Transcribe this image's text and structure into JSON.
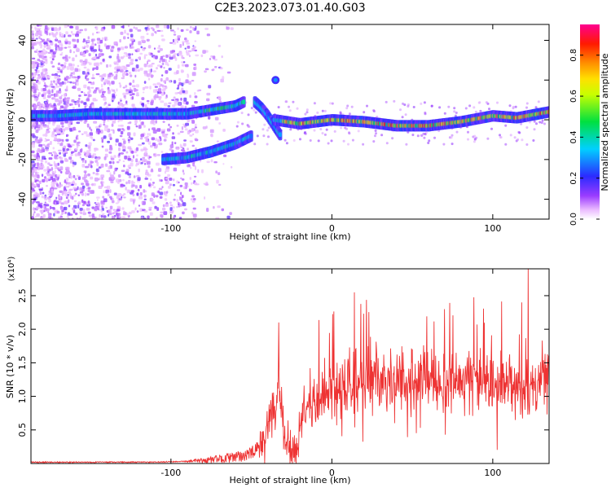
{
  "title": "C2E3.2023.073.01.40.G03",
  "chart_data": [
    {
      "type": "heatmap",
      "xlabel": "Height of straight line (km)",
      "ylabel": "Frequency (Hz)",
      "xlim": [
        -187,
        135
      ],
      "ylim": [
        -50,
        48
      ],
      "x_ticks": [
        -100,
        0,
        100
      ],
      "y_ticks": [
        -40,
        -20,
        0,
        20,
        40
      ],
      "colorbar": {
        "label": "Normalized spectral amplitude",
        "range": [
          0,
          0.95
        ],
        "ticks": [
          0.0,
          0.2,
          0.4,
          0.6,
          0.8
        ]
      },
      "ridges": [
        {
          "x": [
            -187,
            -170,
            -150,
            -130,
            -110,
            -90,
            -75,
            -60,
            -55
          ],
          "y": [
            2,
            2,
            3,
            3,
            3,
            3,
            5,
            7,
            9
          ]
        },
        {
          "x": [
            -105,
            -90,
            -75,
            -60,
            -50
          ],
          "y": [
            -20,
            -19,
            -16,
            -12,
            -8
          ]
        },
        {
          "x": [
            -48,
            -44,
            -40,
            -36,
            -32
          ],
          "y": [
            9,
            6,
            2,
            -3,
            -8
          ]
        },
        {
          "x": [
            -36,
            -20,
            0,
            20,
            40,
            60,
            80,
            100,
            115,
            135
          ],
          "y": [
            0,
            -2,
            0,
            -1,
            -3,
            -3,
            -1,
            2,
            1,
            4
          ]
        }
      ],
      "blobs": [
        {
          "x": -35,
          "y": 20
        }
      ]
    },
    {
      "type": "line",
      "xlabel": "Height of straight line (km)",
      "ylabel": "SNR (10 * v/v)",
      "y_multiplier": "(x10⁴)",
      "xlim": [
        -187,
        135
      ],
      "ylim": [
        0,
        2.9
      ],
      "x_ticks": [
        -100,
        0,
        100
      ],
      "y_ticks": [
        0.5,
        1.0,
        1.5,
        2.0,
        2.5
      ],
      "y_tick_labels": [
        "0.5",
        "1.0",
        "1.5",
        "2.0",
        "2.5"
      ],
      "series": [
        {
          "color": "#ee3333",
          "x": [
            -187,
            -150,
            -110,
            -80,
            -70,
            -60,
            -50,
            -42,
            -38,
            -35,
            -33,
            -30,
            -28,
            -25,
            -22,
            -18,
            -10,
            0,
            15,
            30,
            50,
            70,
            90,
            110,
            120,
            130,
            135
          ],
          "y": [
            0.02,
            0.02,
            0.02,
            0.04,
            0.07,
            0.09,
            0.15,
            0.3,
            0.8,
            0.7,
            1.3,
            0.4,
            0.3,
            0.15,
            0.12,
            0.8,
            0.9,
            1.1,
            1.2,
            1.3,
            1.25,
            1.2,
            1.25,
            1.15,
            1.0,
            1.3,
            1.4
          ]
        }
      ],
      "spikes": [
        {
          "x": -33,
          "y": 2.1
        },
        {
          "x": 14,
          "y": 2.55
        },
        {
          "x": 70,
          "y": 2.3
        },
        {
          "x": 118,
          "y": 2.4
        },
        {
          "x": 122,
          "y": 2.9
        }
      ]
    }
  ]
}
